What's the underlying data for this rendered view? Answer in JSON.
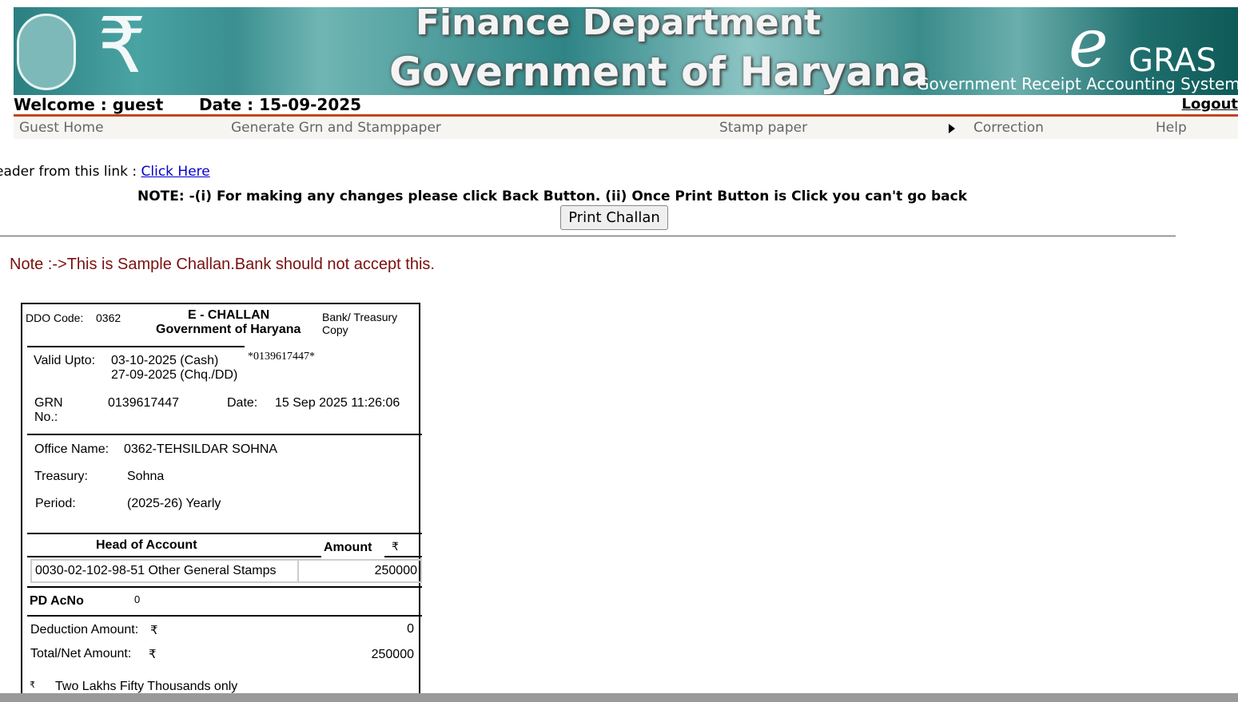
{
  "header": {
    "banner_line1": "Finance Department",
    "banner_line2": "Government of Haryana",
    "logo_e": "e",
    "logo_gras": "GRAS",
    "logo_full": "Government Receipt Accounting System",
    "welcome": "Welcome : guest",
    "date": "Date : 15-09-2025",
    "logout": "Logout"
  },
  "nav": {
    "items": [
      "Guest Home",
      "Generate Grn and Stamppaper",
      "Stamp paper",
      "Correction",
      "Help"
    ]
  },
  "main": {
    "reader_text": "eader from this link : ",
    "reader_link": "Click Here",
    "note": "NOTE: -(i) For making any changes please click Back Button. (ii) Once Print Button is Click you can't go back",
    "print_button": "Print Challan",
    "sample_note": "Note :->This is Sample Challan.Bank should not accept this."
  },
  "challan": {
    "ddo_label": "DDO Code:",
    "ddo_value": "0362",
    "title": "E - CHALLAN",
    "subtitle": "Government of Haryana",
    "copy_line1": "Bank/ Treasury",
    "copy_line2": "Copy",
    "valid_label": "Valid Upto:",
    "valid_cash": "03-10-2025 (Cash)",
    "valid_chq": "27-09-2025 (Chq./DD)",
    "barcode": "*0139617447*",
    "grn_label1": "GRN",
    "grn_label2": "No.:",
    "grn_value": "0139617447",
    "date_label": "Date:",
    "date_value": "15 Sep 2025 11:26:06",
    "office_label": "Office Name:",
    "office_value": "0362-TEHSILDAR SOHNA",
    "treasury_label": "Treasury:",
    "treasury_value": "Sohna",
    "period_label": "Period:",
    "period_value": "(2025-26)  Yearly",
    "head_header": "Head of Account",
    "amount_header": "Amount",
    "rupee": "₹",
    "head_row": "0030-02-102-98-51 Other General Stamps",
    "head_amount": "250000",
    "pd_label": "PD AcNo",
    "pd_value": "0",
    "deduction_label": "Deduction Amount:",
    "deduction_value": "0",
    "total_label": "Total/Net Amount:",
    "total_value": "250000",
    "words": "Two Lakhs Fifty Thousands only"
  }
}
